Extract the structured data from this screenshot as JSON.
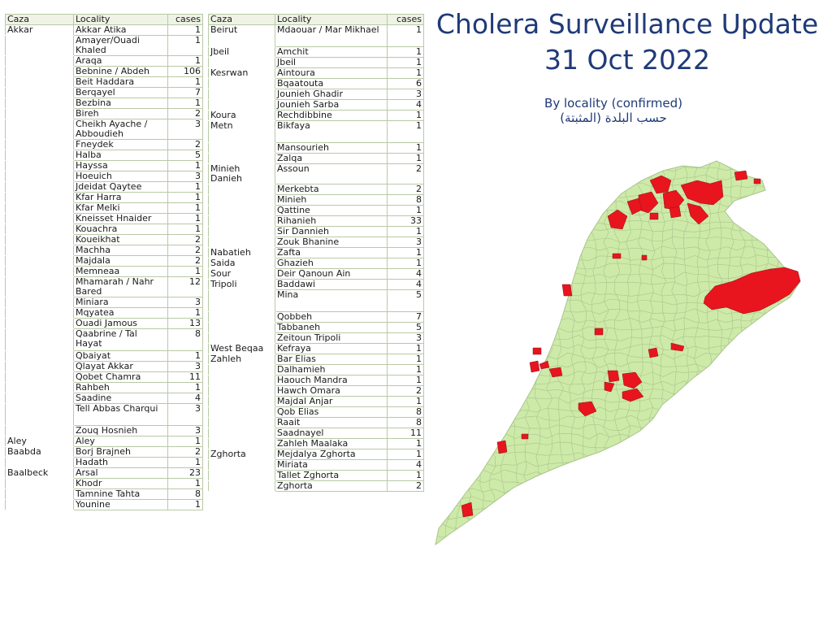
{
  "title": {
    "line1": "Cholera Surveillance Update",
    "line2": "31 Oct 2022"
  },
  "subtitle": {
    "en": "By locality (confirmed)",
    "ar": "حسب البلدة (المثبتة)"
  },
  "table_headers": {
    "caza": "Caza",
    "locality": "Locality",
    "cases": "cases"
  },
  "map_legend_colors": {
    "affected": "#e8141e",
    "unaffected": "#cdeaa8",
    "border": "#a9c48f"
  },
  "tables": [
    {
      "groups": [
        {
          "caza": "Akkar",
          "rows": [
            {
              "locality": "Akkar Atika",
              "cases": 1
            },
            {
              "locality": "Amayer/Ouadi Khaled",
              "cases": 1
            },
            {
              "locality": "Araqa",
              "cases": 1
            },
            {
              "locality": "Bebnine / Abdeh",
              "cases": 106
            },
            {
              "locality": "Beit Haddara",
              "cases": 1
            },
            {
              "locality": "Berqayel",
              "cases": 7
            },
            {
              "locality": "Bezbina",
              "cases": 1
            },
            {
              "locality": "Bireh",
              "cases": 2
            },
            {
              "locality": "Cheikh Ayache / Abboudieh",
              "cases": 3
            },
            {
              "locality": "Fneydek",
              "cases": 2
            },
            {
              "locality": "Halba",
              "cases": 5
            },
            {
              "locality": "Hayssa",
              "cases": 1
            },
            {
              "locality": "Hoeuich",
              "cases": 3
            },
            {
              "locality": "Jdeidat Qaytee",
              "cases": 1
            },
            {
              "locality": "Kfar Harra",
              "cases": 1
            },
            {
              "locality": "Kfar Melki",
              "cases": 1
            },
            {
              "locality": "Kneisset Hnaider",
              "cases": 1
            },
            {
              "locality": "Kouachra",
              "cases": 1
            },
            {
              "locality": "Koueikhat",
              "cases": 2
            },
            {
              "locality": "Machha",
              "cases": 2
            },
            {
              "locality": "Majdala",
              "cases": 2
            },
            {
              "locality": "Memneaa",
              "cases": 1
            },
            {
              "locality": "Mhamarah / Nahr Bared",
              "cases": 12
            },
            {
              "locality": "Miniara",
              "cases": 3
            },
            {
              "locality": "Mqyatea",
              "cases": 1
            },
            {
              "locality": "Ouadi Jamous",
              "cases": 13
            },
            {
              "locality": "Qaabrine / Tal Hayat",
              "cases": 8,
              "tall": true
            },
            {
              "locality": "Qbaiyat",
              "cases": 1
            },
            {
              "locality": "Qlayat Akkar",
              "cases": 3
            },
            {
              "locality": "Qobet Chamra",
              "cases": 11
            },
            {
              "locality": "Rahbeh",
              "cases": 1
            },
            {
              "locality": "Saadine",
              "cases": 4
            },
            {
              "locality": "Tell Abbas Charqui",
              "cases": 3,
              "tall": true
            },
            {
              "locality": "Zouq Hosnieh",
              "cases": 3
            }
          ]
        },
        {
          "caza": "Aley",
          "rows": [
            {
              "locality": "Aley",
              "cases": 1
            }
          ]
        },
        {
          "caza": "Baabda",
          "rows": [
            {
              "locality": "Borj Brajneh",
              "cases": 2
            },
            {
              "locality": "Hadath",
              "cases": 1
            }
          ]
        },
        {
          "caza": "Baalbeck",
          "rows": [
            {
              "locality": "Arsal",
              "cases": 23
            },
            {
              "locality": "Khodr",
              "cases": 1
            },
            {
              "locality": "Tamnine Tahta",
              "cases": 8
            },
            {
              "locality": "Younine",
              "cases": 1
            }
          ]
        }
      ]
    },
    {
      "groups": [
        {
          "caza": "Beirut",
          "rows": [
            {
              "locality": "Mdaouar / Mar Mikhael",
              "cases": 1,
              "tall": true
            }
          ]
        },
        {
          "caza": "Jbeil",
          "rows": [
            {
              "locality": "Amchit",
              "cases": 1
            },
            {
              "locality": "Jbeil",
              "cases": 1
            }
          ]
        },
        {
          "caza": "Kesrwan",
          "rows": [
            {
              "locality": "Aintoura",
              "cases": 1
            },
            {
              "locality": "Bqaatouta",
              "cases": 6
            },
            {
              "locality": "Jounieh Ghadir",
              "cases": 3
            },
            {
              "locality": "Jounieh Sarba",
              "cases": 4
            }
          ]
        },
        {
          "caza": "Koura",
          "rows": [
            {
              "locality": "Rechdibbine",
              "cases": 1
            }
          ]
        },
        {
          "caza": "Metn",
          "rows": [
            {
              "locality": "Bikfaya",
              "cases": 1,
              "tall": true
            },
            {
              "locality": "Mansourieh",
              "cases": 1
            },
            {
              "locality": "Zalqa",
              "cases": 1
            }
          ]
        },
        {
          "caza": "Minieh Danieh",
          "rows": [
            {
              "locality": "Assoun",
              "cases": 2
            },
            {
              "locality": "Merkebta",
              "cases": 2
            },
            {
              "locality": "Minieh",
              "cases": 8
            },
            {
              "locality": "Qattine",
              "cases": 1
            },
            {
              "locality": "Rihanieh",
              "cases": 33
            },
            {
              "locality": "Sir Dannieh",
              "cases": 1
            },
            {
              "locality": "Zouk Bhanine",
              "cases": 3
            }
          ]
        },
        {
          "caza": "Nabatieh",
          "rows": [
            {
              "locality": "Zafta",
              "cases": 1
            }
          ]
        },
        {
          "caza": "Saida",
          "rows": [
            {
              "locality": "Ghazieh",
              "cases": 1
            }
          ]
        },
        {
          "caza": "Sour",
          "rows": [
            {
              "locality": "Deir Qanoun Ain",
              "cases": 4
            }
          ]
        },
        {
          "caza": "Tripoli",
          "rows": [
            {
              "locality": "Baddawi",
              "cases": 4
            },
            {
              "locality": "Mina",
              "cases": 5,
              "tall": true
            },
            {
              "locality": "Qobbeh",
              "cases": 7
            },
            {
              "locality": "Tabbaneh",
              "cases": 5
            },
            {
              "locality": "Zeitoun Tripoli",
              "cases": 3
            }
          ]
        },
        {
          "caza": "West Beqaa",
          "rows": [
            {
              "locality": "Kefraya",
              "cases": 1
            }
          ]
        },
        {
          "caza": "Zahleh",
          "rows": [
            {
              "locality": "Bar Elias",
              "cases": 1
            },
            {
              "locality": "Dalhamieh",
              "cases": 1
            },
            {
              "locality": "Haouch Mandra",
              "cases": 1
            },
            {
              "locality": "Hawch Omara",
              "cases": 2
            },
            {
              "locality": "Majdal Anjar",
              "cases": 1
            },
            {
              "locality": "Qob Elias",
              "cases": 8
            },
            {
              "locality": "Raait",
              "cases": 8
            },
            {
              "locality": "Saadnayel",
              "cases": 11
            },
            {
              "locality": "Zahleh Maalaka",
              "cases": 1
            }
          ]
        },
        {
          "caza": "Zghorta",
          "rows": [
            {
              "locality": "Mejdalya Zghorta",
              "cases": 1
            },
            {
              "locality": "Miriata",
              "cases": 4
            },
            {
              "locality": "Tallet Zghorta",
              "cases": 1
            },
            {
              "locality": "Zghorta",
              "cases": 2
            }
          ]
        }
      ]
    }
  ]
}
